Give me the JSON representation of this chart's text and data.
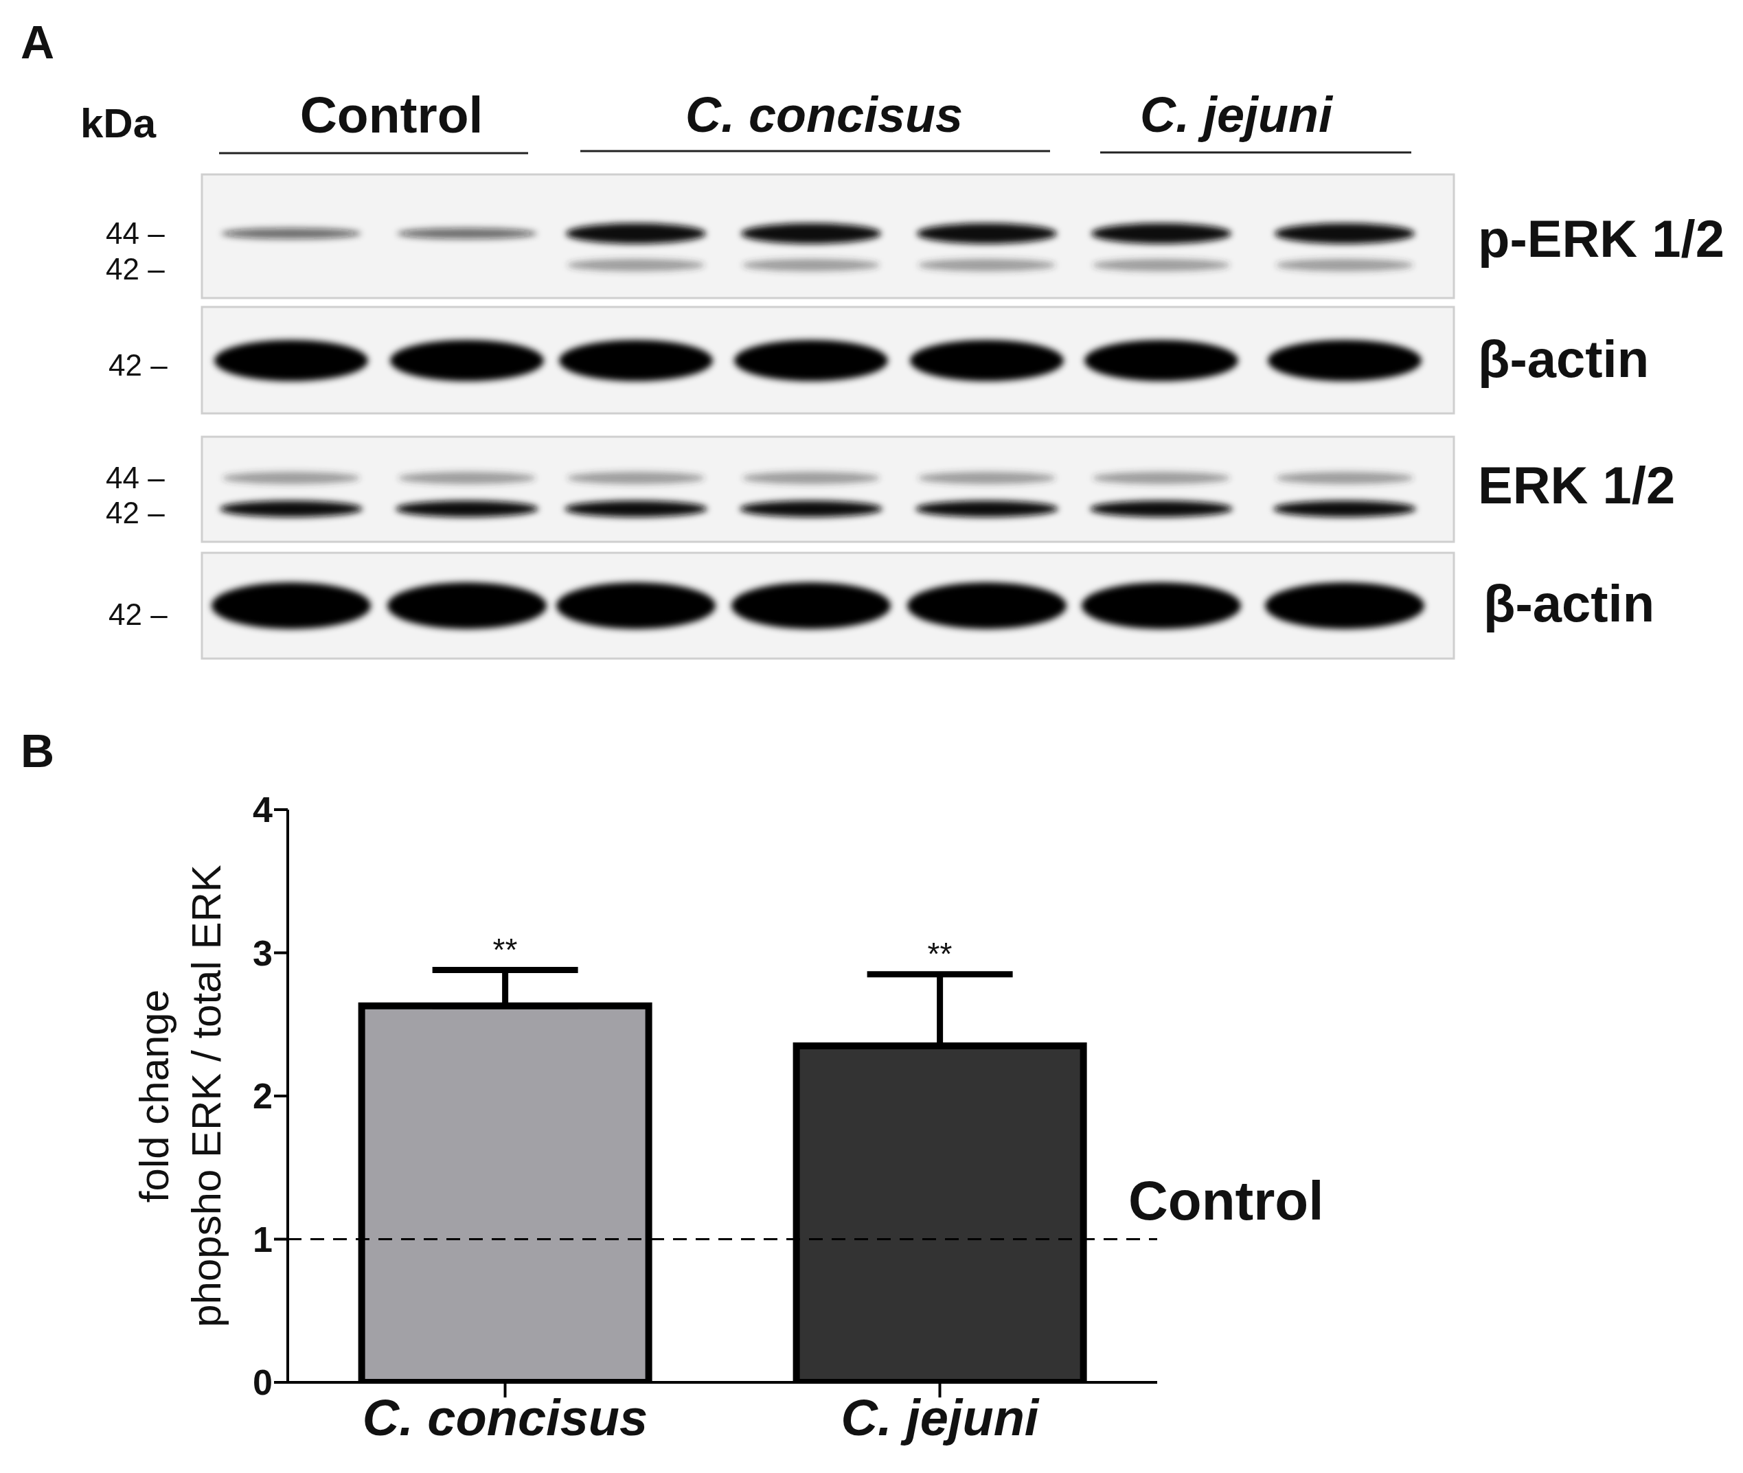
{
  "chart_data": [
    {
      "type": "other",
      "title": "A",
      "annotations": [
        "kDa",
        "Control",
        "C. concisus",
        "C. jejuni",
        "44 –",
        "42 –",
        "p-ERK 1/2",
        "42 –",
        "β-actin",
        "44 –",
        "42 –",
        "ERK 1/2",
        "42 –",
        "β-actin"
      ]
    },
    {
      "type": "bar",
      "title": "B",
      "ylabel": "fold change\nphopsho ERK / total ERK",
      "categories": [
        "C. concisus",
        "C. jejuni"
      ],
      "values": [
        2.63,
        2.35
      ],
      "colors": [
        "#a2a1a6",
        "#333333"
      ],
      "errors": [
        0.25,
        0.5
      ],
      "ylim": [
        0,
        4
      ],
      "yticks": [
        0,
        1,
        2,
        3,
        4
      ],
      "ref_lines": [
        {
          "axis": "y",
          "value": 1,
          "label": "Control",
          "color": "#000000",
          "line_style": "dashed"
        }
      ],
      "annotations": [
        {
          "text": "**",
          "x": "C. concisus",
          "y": 2.88
        },
        {
          "text": "**",
          "x": "C. jejuni",
          "y": 2.85
        }
      ]
    }
  ]
}
